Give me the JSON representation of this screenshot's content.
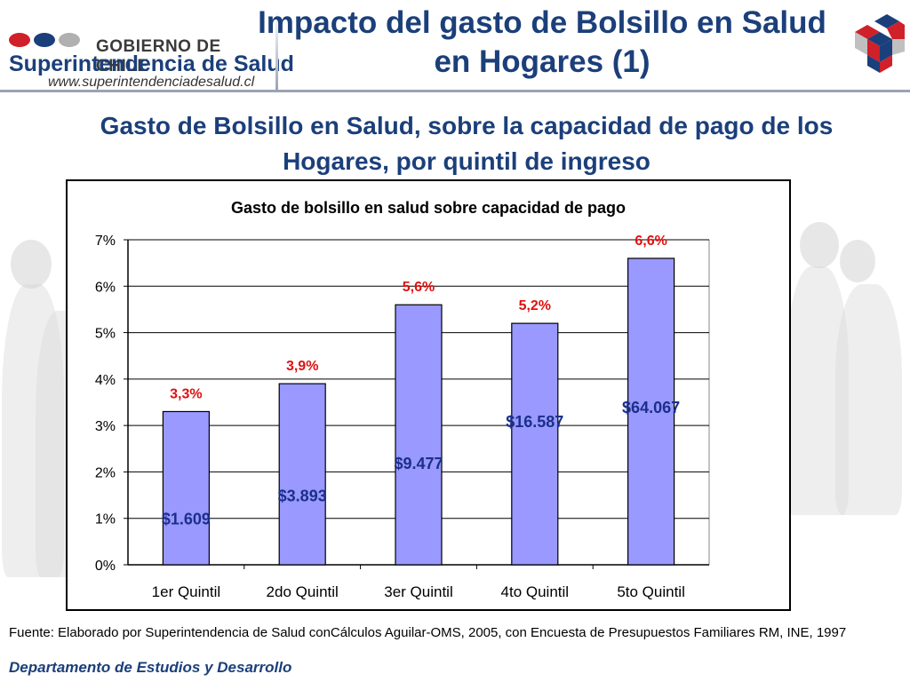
{
  "header": {
    "gov_label": "GOBIERNO DE CHILE",
    "org_name": "Superintendencia de Salud",
    "website": "www.superintendenciadesalud.cl",
    "title": "Impacto del gasto de Bolsillo en Salud en Hogares (1)"
  },
  "subtitle": "Gasto de Bolsillo en Salud, sobre la capacidad de pago de los Hogares, por quintil de ingreso",
  "chart_data": {
    "type": "bar",
    "title": "Gasto de bolsillo en salud sobre capacidad de pago",
    "categories": [
      "1er Quintil",
      "2do Quintil",
      "3er Quintil",
      "4to Quintil",
      "5to Quintil"
    ],
    "values": [
      3.3,
      3.9,
      5.6,
      5.2,
      6.6
    ],
    "value_labels": [
      "3,3%",
      "3,9%",
      "5,6%",
      "5,2%",
      "6,6%"
    ],
    "amount_labels": [
      "$1.609",
      "$3.893",
      "$9.477",
      "$16.587",
      "$64.067"
    ],
    "amount_values_pct": [
      1.0,
      1.5,
      2.2,
      3.1,
      3.4
    ],
    "yticks": [
      "0%",
      "1%",
      "2%",
      "3%",
      "4%",
      "5%",
      "6%",
      "7%"
    ],
    "ylim": [
      0,
      7
    ],
    "xlabel": "",
    "ylabel": "",
    "bar_color": "#9999ff",
    "value_label_color": "#e01010",
    "amount_label_color": "#1b2f8a",
    "grid": true
  },
  "footer": {
    "source": "Fuente: Elaborado por Superintendencia de Salud conCálculos Aguilar-OMS, 2005, con Encuesta de Presupuestos Familiares RM, INE, 1997",
    "department": "Departamento de Estudios y Desarrollo"
  },
  "colors": {
    "brand": "#1b3f7a",
    "accent_red": "#d0202a"
  }
}
